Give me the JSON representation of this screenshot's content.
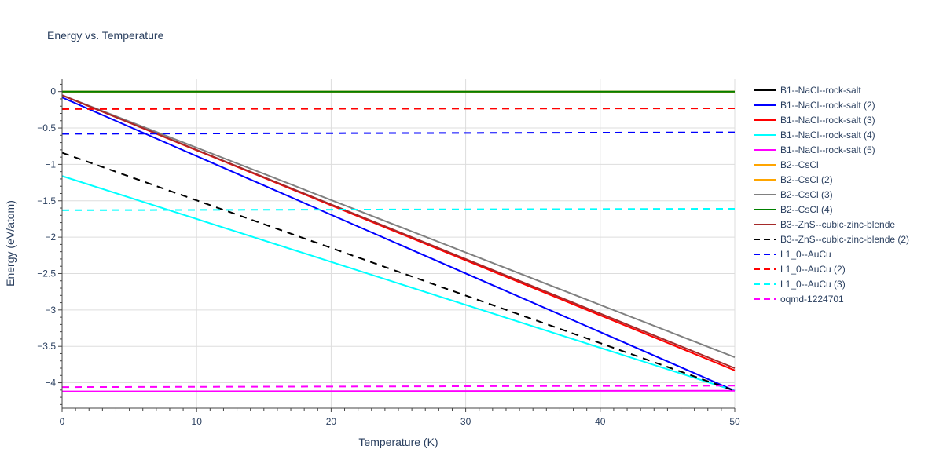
{
  "chart_data": {
    "type": "line",
    "title": "Energy vs. Temperature",
    "xlabel": "Temperature (K)",
    "ylabel": "Energy (eV/atom)",
    "xlim": [
      0,
      50
    ],
    "ylim": [
      -4.35,
      0.18
    ],
    "x_ticks": [
      0,
      10,
      20,
      30,
      40,
      50
    ],
    "x_tick_labels": [
      "0",
      "10",
      "20",
      "30",
      "40",
      "50"
    ],
    "y_ticks": [
      0,
      -0.5,
      -1,
      -1.5,
      -2,
      -2.5,
      -3,
      -3.5,
      -4
    ],
    "y_tick_labels": [
      "0",
      "−0.5",
      "−1",
      "−1.5",
      "−2",
      "−2.5",
      "−3",
      "−3.5",
      "−4"
    ],
    "grid": true,
    "legend_position": "right",
    "series": [
      {
        "name": "B1--NaCl--rock-salt",
        "color": "#000000",
        "dash": "solid",
        "x": [
          0,
          50
        ],
        "y": [
          0,
          0
        ]
      },
      {
        "name": "B1--NaCl--rock-salt (2)",
        "color": "#0000ff",
        "dash": "solid",
        "x": [
          0,
          50
        ],
        "y": [
          -0.08,
          -4.11
        ]
      },
      {
        "name": "B1--NaCl--rock-salt (3)",
        "color": "#ff0000",
        "dash": "solid",
        "x": [
          0,
          50
        ],
        "y": [
          -0.05,
          -3.83
        ]
      },
      {
        "name": "B1--NaCl--rock-salt (4)",
        "color": "#00ffff",
        "dash": "solid",
        "x": [
          0,
          50
        ],
        "y": [
          -1.16,
          -4.11
        ]
      },
      {
        "name": "B1--NaCl--rock-salt (5)",
        "color": "#ff00ff",
        "dash": "solid",
        "x": [
          0,
          50
        ],
        "y": [
          -4.12,
          -4.11
        ]
      },
      {
        "name": "B2--CsCl",
        "color": "#ffa500",
        "dash": "solid",
        "x": [
          0,
          50
        ],
        "y": [
          0,
          0
        ]
      },
      {
        "name": "B2--CsCl (2)",
        "color": "#ffa500",
        "dash": "solid",
        "x": [
          0,
          50
        ],
        "y": [
          0,
          0
        ]
      },
      {
        "name": "B2--CsCl (3)",
        "color": "#808080",
        "dash": "solid",
        "x": [
          0,
          50
        ],
        "y": [
          -0.05,
          -3.65
        ]
      },
      {
        "name": "B2--CsCl (4)",
        "color": "#008000",
        "dash": "solid",
        "x": [
          0,
          50
        ],
        "y": [
          0,
          0
        ]
      },
      {
        "name": "B3--ZnS--cubic-zinc-blende",
        "color": "#a52a2a",
        "dash": "solid",
        "x": [
          0,
          50
        ],
        "y": [
          -0.05,
          -3.8
        ]
      },
      {
        "name": "B3--ZnS--cubic-zinc-blende (2)",
        "color": "#000000",
        "dash": "dash",
        "x": [
          0,
          50
        ],
        "y": [
          -0.84,
          -4.11
        ]
      },
      {
        "name": "L1_0--AuCu",
        "color": "#0000ff",
        "dash": "dash",
        "x": [
          0,
          50
        ],
        "y": [
          -0.58,
          -0.56
        ]
      },
      {
        "name": "L1_0--AuCu (2)",
        "color": "#ff0000",
        "dash": "dash",
        "x": [
          0,
          50
        ],
        "y": [
          -0.24,
          -0.23
        ]
      },
      {
        "name": "L1_0--AuCu (3)",
        "color": "#00ffff",
        "dash": "dash",
        "x": [
          0,
          50
        ],
        "y": [
          -1.63,
          -1.61
        ]
      },
      {
        "name": "oqmd-1224701",
        "color": "#ff00ff",
        "dash": "dash",
        "x": [
          0,
          50
        ],
        "y": [
          -4.06,
          -4.04
        ]
      }
    ]
  }
}
